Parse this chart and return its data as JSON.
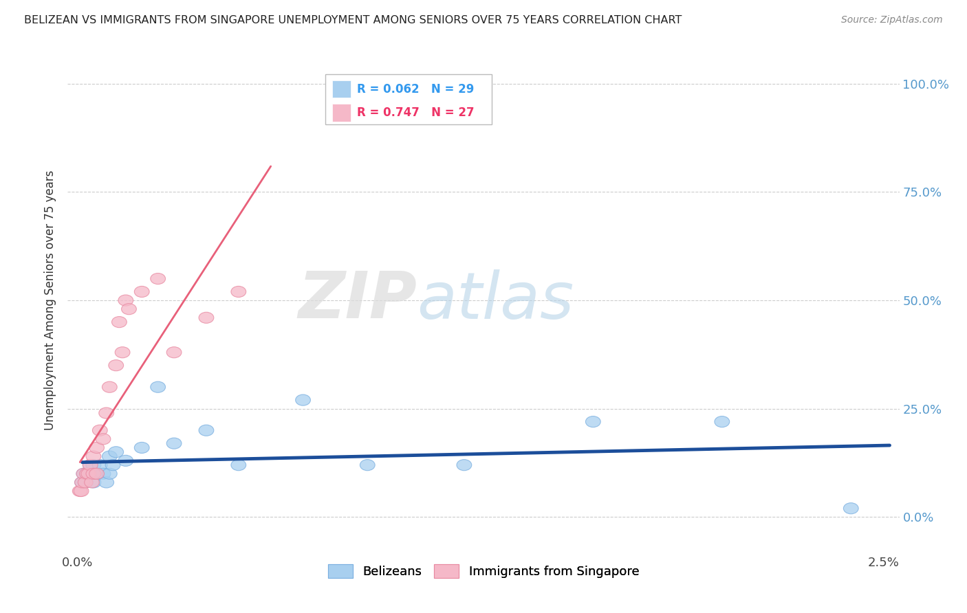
{
  "title": "BELIZEAN VS IMMIGRANTS FROM SINGAPORE UNEMPLOYMENT AMONG SENIORS OVER 75 YEARS CORRELATION CHART",
  "source": "Source: ZipAtlas.com",
  "ylabel": "Unemployment Among Seniors over 75 years",
  "belizean_R": 0.062,
  "belizean_N": 29,
  "singapore_R": 0.747,
  "singapore_N": 27,
  "belizean_color": "#A8CFEF",
  "belizean_edge_color": "#7AAFE0",
  "singapore_color": "#F5B8C8",
  "singapore_edge_color": "#E888A0",
  "belizean_line_color": "#1C4E9A",
  "singapore_line_color": "#E8607A",
  "background_color": "#FFFFFF",
  "watermark_zip": "ZIP",
  "watermark_atlas": "atlas",
  "grid_color": "#CCCCCC",
  "right_tick_color": "#5599CC",
  "title_color": "#222222",
  "ylabel_color": "#333333",
  "belizean_x": [
    0.00015,
    0.0002,
    0.00025,
    0.0003,
    0.00035,
    0.0004,
    0.00045,
    0.0005,
    0.0005,
    0.0006,
    0.0007,
    0.0008,
    0.0009,
    0.001,
    0.001,
    0.0011,
    0.0012,
    0.0015,
    0.002,
    0.0025,
    0.003,
    0.004,
    0.005,
    0.007,
    0.009,
    0.012,
    0.016,
    0.02,
    0.024
  ],
  "belizean_y": [
    0.08,
    0.1,
    0.08,
    0.1,
    0.1,
    0.12,
    0.1,
    0.12,
    0.08,
    0.1,
    0.12,
    0.1,
    0.08,
    0.1,
    0.14,
    0.12,
    0.15,
    0.13,
    0.16,
    0.3,
    0.17,
    0.2,
    0.12,
    0.27,
    0.12,
    0.12,
    0.22,
    0.22,
    0.02
  ],
  "singapore_x": [
    8e-05,
    0.00012,
    0.00015,
    0.0002,
    0.00025,
    0.0003,
    0.00035,
    0.0004,
    0.00045,
    0.0005,
    0.0005,
    0.0006,
    0.0006,
    0.0007,
    0.0008,
    0.0009,
    0.001,
    0.0012,
    0.0013,
    0.0014,
    0.0015,
    0.0016,
    0.002,
    0.0025,
    0.003,
    0.004,
    0.005
  ],
  "singapore_y": [
    0.06,
    0.06,
    0.08,
    0.1,
    0.08,
    0.1,
    0.1,
    0.12,
    0.08,
    0.14,
    0.1,
    0.16,
    0.1,
    0.2,
    0.18,
    0.24,
    0.3,
    0.35,
    0.45,
    0.38,
    0.5,
    0.48,
    0.52,
    0.55,
    0.38,
    0.46,
    0.52
  ],
  "xlim_min": -0.0003,
  "xlim_max": 0.0255,
  "ylim_min": -0.08,
  "ylim_max": 1.08,
  "yticks": [
    0.0,
    0.25,
    0.5,
    0.75,
    1.0
  ],
  "ytick_labels": [
    "0.0%",
    "25.0%",
    "50.0%",
    "75.0%",
    "100.0%"
  ],
  "xtick_labels_show": [
    "0.0%",
    "2.5%"
  ],
  "legend_R_color": "#3399EE",
  "legend_R2_color": "#EE3366"
}
